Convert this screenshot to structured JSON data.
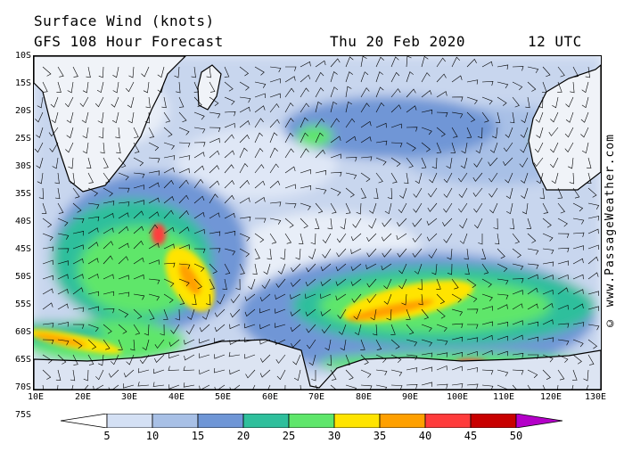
{
  "header": {
    "title": "Surface Wind (knots)",
    "forecast": "GFS 108 Hour Forecast",
    "date": "Thu 20 Feb 2020",
    "time": "12 UTC"
  },
  "credit": "© www.PassageWeather.com",
  "axes": {
    "lat_labels": [
      "10S",
      "15S",
      "20S",
      "25S",
      "30S",
      "35S",
      "40S",
      "45S",
      "50S",
      "55S",
      "60S",
      "65S",
      "70S",
      "75S"
    ],
    "lon_labels": [
      "10E",
      "20E",
      "30E",
      "40E",
      "50E",
      "60E",
      "70E",
      "80E",
      "90E",
      "100E",
      "110E",
      "120E",
      "130E"
    ]
  },
  "legend": {
    "values": [
      "5",
      "10",
      "15",
      "20",
      "25",
      "30",
      "35",
      "40",
      "45",
      "50"
    ],
    "colors": [
      "#ffffff",
      "#d4e0f4",
      "#a8c0e6",
      "#6f96d6",
      "#2fbf9c",
      "#5fe66b",
      "#ffe400",
      "#ffa000",
      "#ff3c3c",
      "#c80000",
      "#b400c8"
    ]
  }
}
